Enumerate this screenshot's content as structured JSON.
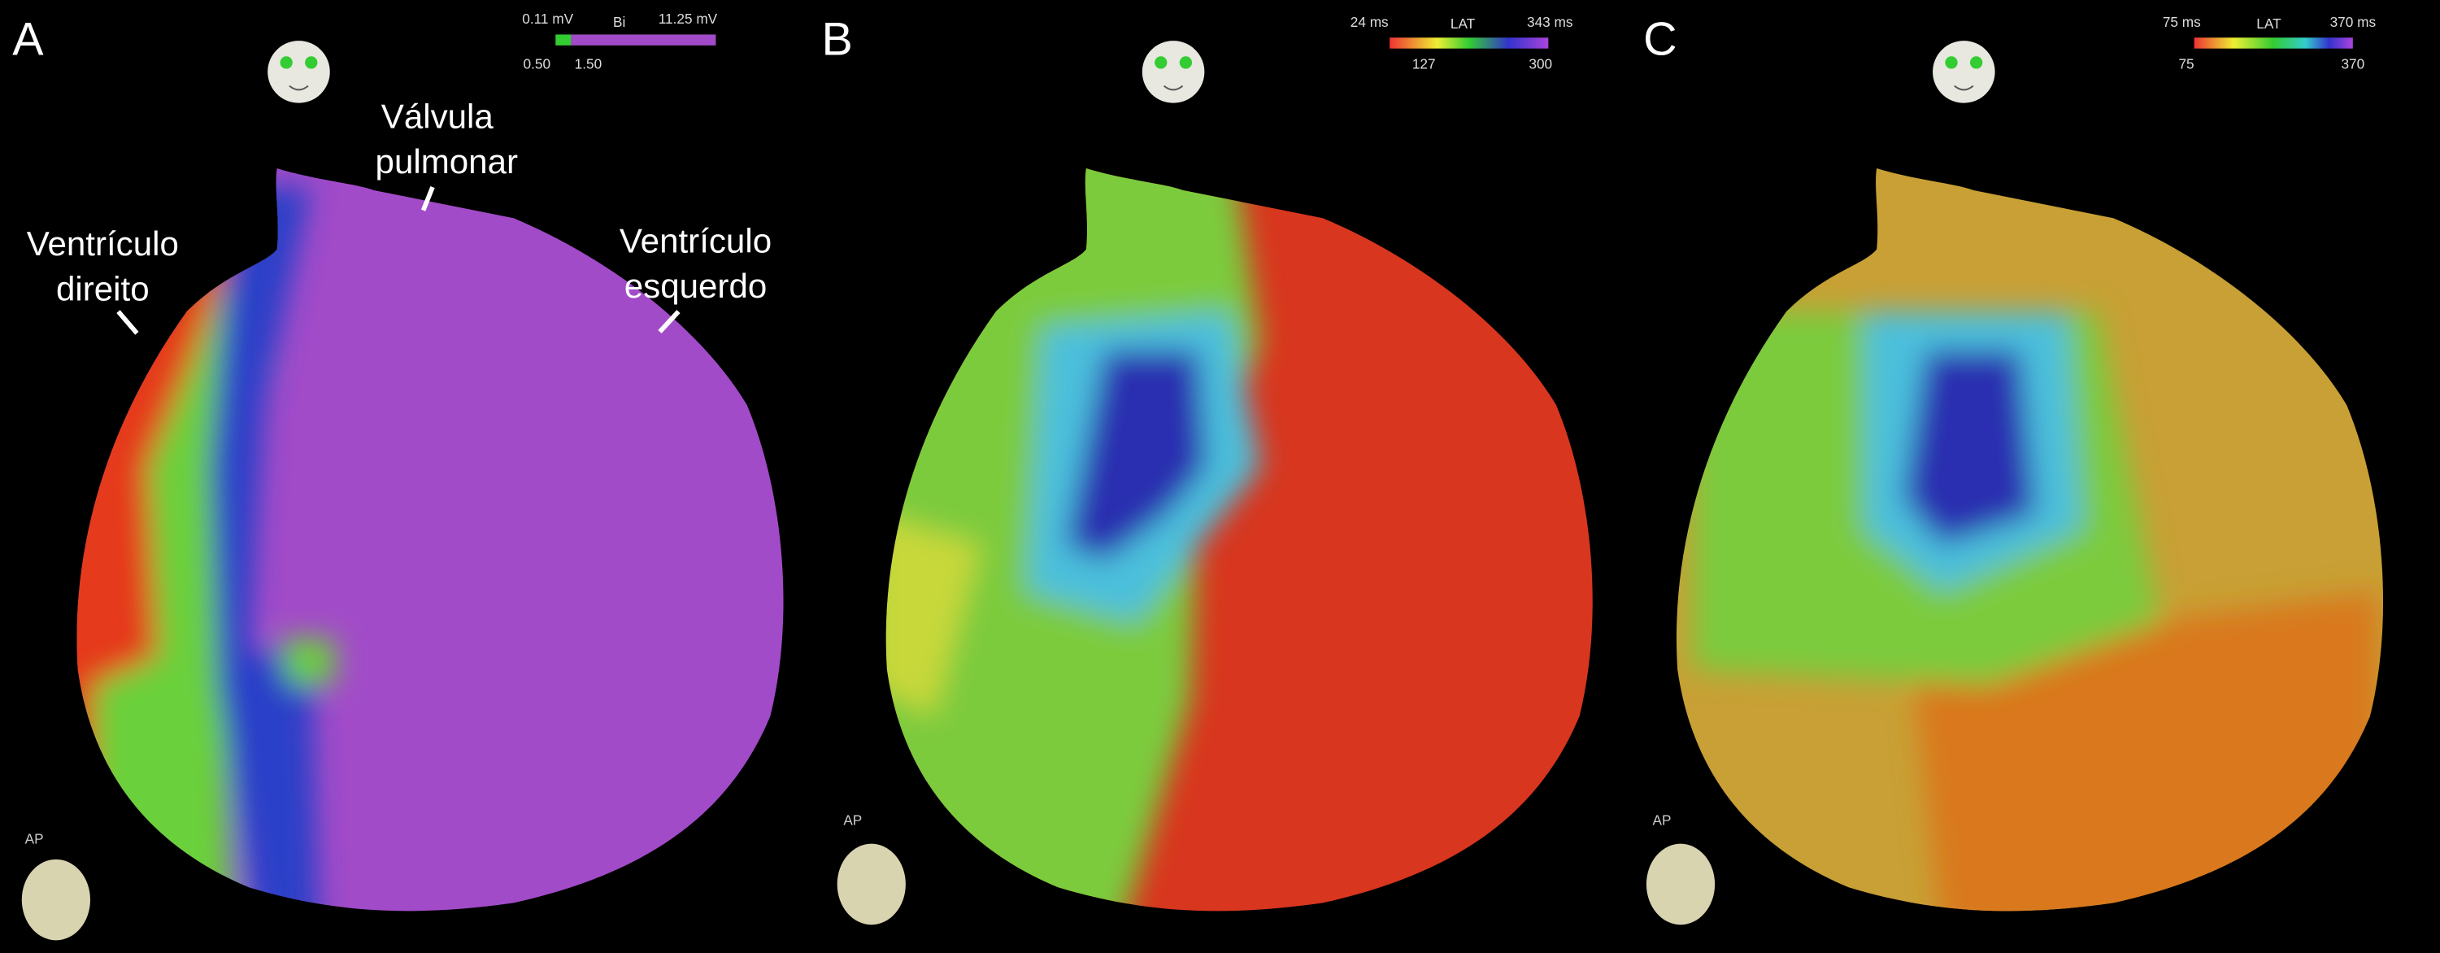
{
  "panels": [
    {
      "label": "A",
      "colorbar": {
        "min_label": "0.11 mV",
        "title": "Bi",
        "max_label": "11.25 mV",
        "low": "0.50",
        "high": "1.50"
      },
      "view": "AP",
      "annotations": [
        {
          "lines": [
            "Válvula",
            "pulmonar"
          ]
        },
        {
          "lines": [
            "Ventrículo",
            "direito"
          ]
        },
        {
          "lines": [
            "Ventrículo",
            "esquerdo"
          ]
        }
      ]
    },
    {
      "label": "B",
      "colorbar": {
        "min_label": "24 ms",
        "title": "LAT",
        "max_label": "343 ms",
        "low": "127",
        "high": "300"
      },
      "view": "AP"
    },
    {
      "label": "C",
      "colorbar": {
        "min_label": "75 ms",
        "title": "LAT",
        "max_label": "370 ms",
        "low": "75",
        "high": "370"
      },
      "view": "AP"
    }
  ]
}
